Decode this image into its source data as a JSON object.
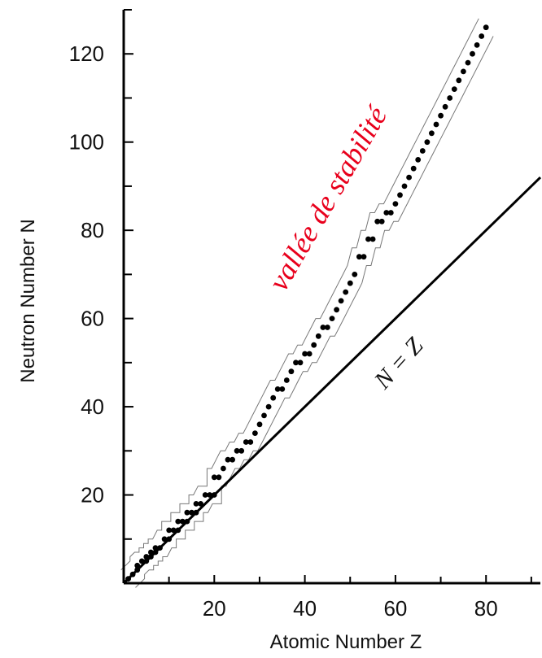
{
  "chart_data": {
    "type": "scatter",
    "title": "",
    "xlabel": "Atomic Number Z",
    "ylabel": "Neutron Number N",
    "xlim": [
      0,
      92
    ],
    "ylim": [
      0,
      130
    ],
    "xticks": [
      20,
      40,
      60,
      80
    ],
    "yticks": [
      20,
      40,
      60,
      80,
      100,
      120
    ],
    "xtick_labels": [
      "20",
      "40",
      "60",
      "80"
    ],
    "ytick_labels": [
      "20",
      "40",
      "60",
      "80",
      "100",
      "120"
    ],
    "grid": false,
    "series": [
      {
        "marker": "dot",
        "color": "#000000",
        "points": [
          [
            1,
            1
          ],
          [
            2,
            2
          ],
          [
            3,
            3
          ],
          [
            3,
            4
          ],
          [
            4,
            5
          ],
          [
            5,
            5
          ],
          [
            5,
            6
          ],
          [
            6,
            6
          ],
          [
            6,
            7
          ],
          [
            7,
            7
          ],
          [
            7,
            8
          ],
          [
            8,
            8
          ],
          [
            9,
            10
          ],
          [
            10,
            10
          ],
          [
            10,
            12
          ],
          [
            11,
            12
          ],
          [
            12,
            12
          ],
          [
            12,
            14
          ],
          [
            13,
            14
          ],
          [
            14,
            14
          ],
          [
            14,
            16
          ],
          [
            15,
            16
          ],
          [
            16,
            16
          ],
          [
            16,
            18
          ],
          [
            17,
            18
          ],
          [
            18,
            20
          ],
          [
            19,
            20
          ],
          [
            20,
            20
          ],
          [
            20,
            24
          ],
          [
            21,
            24
          ],
          [
            22,
            26
          ],
          [
            23,
            28
          ],
          [
            24,
            28
          ],
          [
            25,
            30
          ],
          [
            26,
            30
          ],
          [
            27,
            32
          ],
          [
            28,
            32
          ],
          [
            29,
            34
          ],
          [
            30,
            36
          ],
          [
            31,
            38
          ],
          [
            32,
            40
          ],
          [
            33,
            42
          ],
          [
            34,
            44
          ],
          [
            35,
            44
          ],
          [
            36,
            46
          ],
          [
            37,
            48
          ],
          [
            38,
            50
          ],
          [
            39,
            50
          ],
          [
            40,
            52
          ],
          [
            41,
            52
          ],
          [
            42,
            54
          ],
          [
            43,
            56
          ],
          [
            44,
            58
          ],
          [
            45,
            58
          ],
          [
            46,
            60
          ],
          [
            47,
            62
          ],
          [
            48,
            64
          ],
          [
            49,
            66
          ],
          [
            50,
            68
          ],
          [
            51,
            70
          ],
          [
            52,
            74
          ],
          [
            53,
            74
          ],
          [
            54,
            78
          ],
          [
            55,
            78
          ],
          [
            56,
            82
          ],
          [
            57,
            82
          ],
          [
            58,
            84
          ],
          [
            59,
            84
          ],
          [
            60,
            86
          ],
          [
            61,
            88
          ],
          [
            62,
            90
          ],
          [
            63,
            92
          ],
          [
            64,
            94
          ],
          [
            65,
            96
          ],
          [
            66,
            98
          ],
          [
            67,
            100
          ],
          [
            68,
            102
          ],
          [
            69,
            104
          ],
          [
            70,
            106
          ],
          [
            71,
            108
          ],
          [
            72,
            110
          ],
          [
            73,
            112
          ],
          [
            74,
            114
          ],
          [
            75,
            116
          ],
          [
            76,
            118
          ],
          [
            77,
            120
          ],
          [
            78,
            122
          ],
          [
            79,
            124
          ],
          [
            80,
            126
          ]
        ]
      }
    ],
    "reference_line": {
      "label": "N = Z",
      "from": [
        0,
        0
      ],
      "to": [
        92,
        92
      ]
    },
    "annotations": [
      {
        "text": "vallée de stabilité",
        "color": "#e8001c"
      },
      {
        "text": "N = Z",
        "color": "#000000"
      }
    ]
  }
}
